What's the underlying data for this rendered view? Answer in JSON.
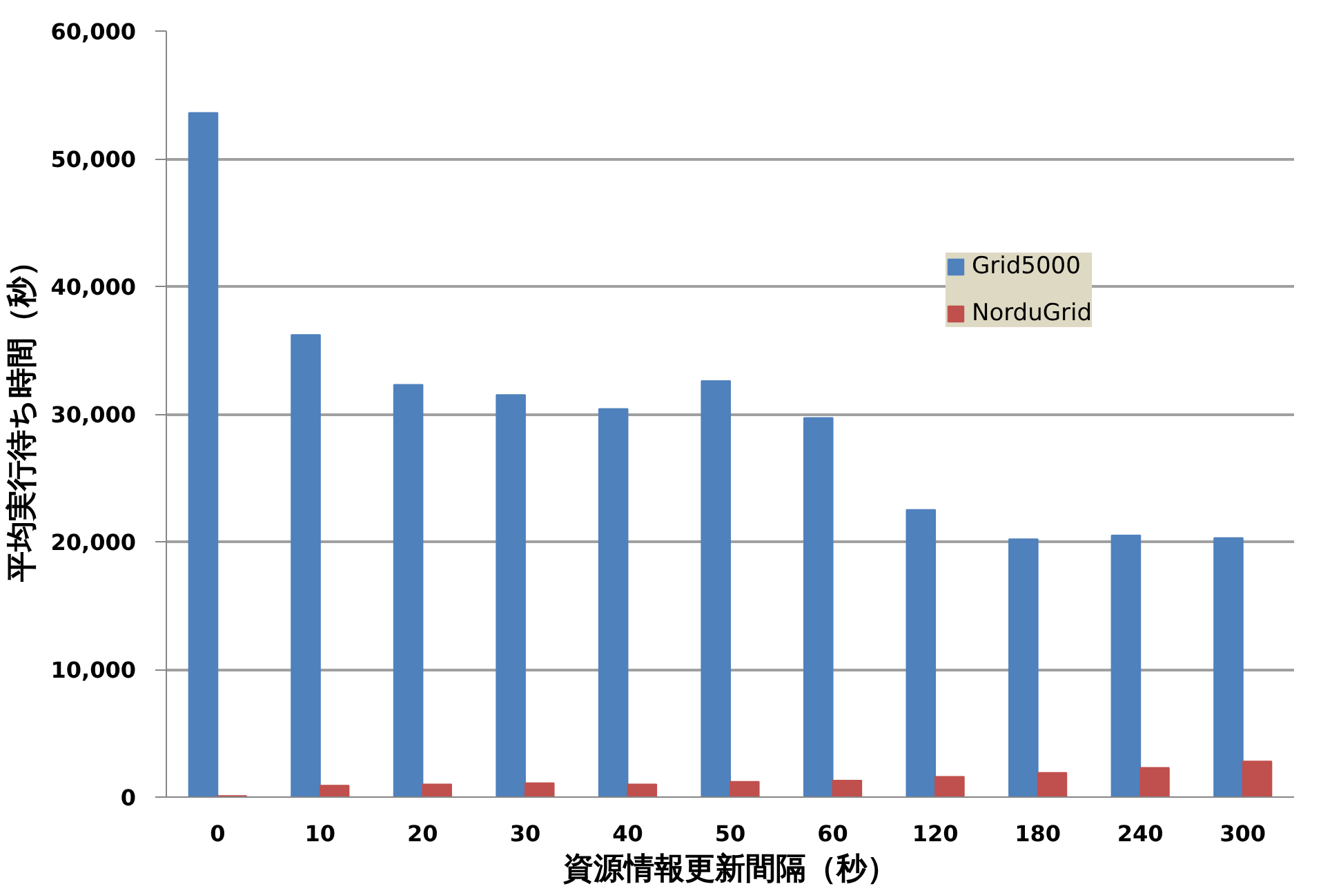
{
  "chart_data": {
    "type": "bar",
    "xlabel": "資源情報更新間隔（秒）",
    "ylabel": "平均実行待ち時間（秒）",
    "categories": [
      "0",
      "10",
      "20",
      "30",
      "40",
      "50",
      "60",
      "120",
      "180",
      "240",
      "300"
    ],
    "series": [
      {
        "name": "Grid5000",
        "color": "#4f81bd",
        "values": [
          53600,
          36200,
          32300,
          31500,
          30400,
          32600,
          29700,
          22500,
          20200,
          20500,
          20300
        ]
      },
      {
        "name": "NorduGrid",
        "color": "#c0504d",
        "values": [
          100,
          900,
          1000,
          1100,
          1000,
          1200,
          1300,
          1600,
          1900,
          2300,
          2800
        ]
      }
    ],
    "ylim": [
      0,
      60000
    ],
    "yticks": [
      {
        "value": 0,
        "label": "0"
      },
      {
        "value": 10000,
        "label": "10,000"
      },
      {
        "value": 20000,
        "label": "20,000"
      },
      {
        "value": 30000,
        "label": "30,000"
      },
      {
        "value": 40000,
        "label": "40,000"
      },
      {
        "value": 50000,
        "label": "50,000"
      },
      {
        "value": 60000,
        "label": "60,000"
      }
    ],
    "grid": "y",
    "legend": "top right"
  }
}
